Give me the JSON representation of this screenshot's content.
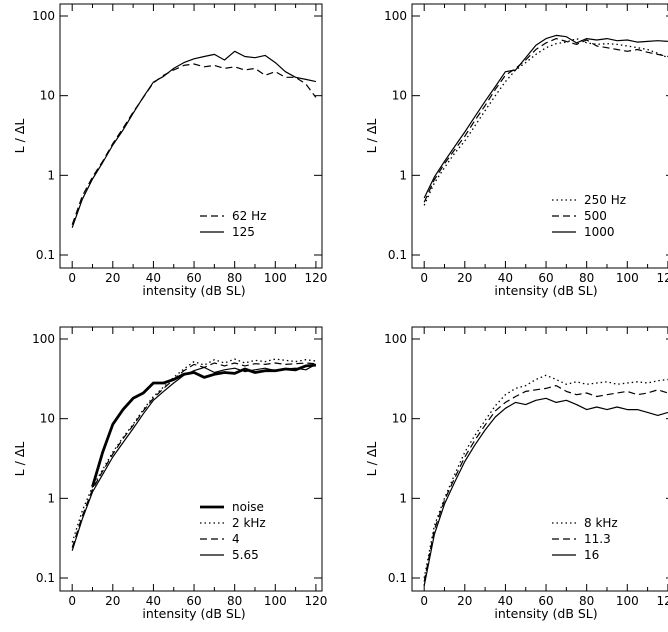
{
  "chart_data": [
    {
      "type": "line",
      "xlabel": "intensity (dB SL)",
      "ylabel": "L / ΔL",
      "xlim": [
        -6,
        123
      ],
      "ylim": [
        0.1,
        100
      ],
      "yscale": "log",
      "xticks": [
        0,
        20,
        40,
        60,
        80,
        100,
        120
      ],
      "yticks": [
        0.1,
        1,
        10,
        100
      ],
      "ytick_labels": [
        "0.1",
        "1",
        "10",
        "100"
      ],
      "legend_position": "bottom-right",
      "series": [
        {
          "name": "62 Hz",
          "style": "dashed",
          "x": [
            0,
            5,
            10,
            15,
            20,
            25,
            30,
            35,
            40,
            45,
            50,
            55,
            60,
            65,
            70,
            75,
            80,
            85,
            90,
            95,
            100,
            105,
            110,
            115,
            120
          ],
          "y": [
            0.24,
            0.55,
            0.95,
            1.5,
            2.5,
            3.9,
            6.2,
            9.5,
            14.5,
            18,
            21,
            24,
            25,
            23,
            24,
            22,
            23,
            21,
            22,
            18,
            20,
            17,
            17,
            14,
            9.5
          ]
        },
        {
          "name": "125",
          "style": "solid",
          "x": [
            0,
            5,
            10,
            15,
            20,
            25,
            30,
            35,
            40,
            45,
            50,
            55,
            60,
            65,
            70,
            75,
            80,
            85,
            90,
            95,
            100,
            105,
            110,
            115,
            120
          ],
          "y": [
            0.22,
            0.5,
            0.9,
            1.45,
            2.4,
            3.7,
            6.0,
            9.6,
            14.8,
            17.5,
            22,
            26,
            29,
            31,
            33,
            28,
            36,
            31,
            30,
            32,
            26,
            20,
            17,
            16,
            15
          ]
        }
      ]
    },
    {
      "type": "line",
      "xlabel": "intensity (dB SL)",
      "ylabel": "L / ΔL",
      "xlim": [
        -6,
        123
      ],
      "ylim": [
        0.1,
        100
      ],
      "yscale": "log",
      "xticks": [
        0,
        20,
        40,
        60,
        80,
        100,
        120
      ],
      "yticks": [
        0.1,
        1,
        10,
        100
      ],
      "ytick_labels": [
        "0.1",
        "1",
        "10",
        "100"
      ],
      "legend_position": "bottom-right",
      "series": [
        {
          "name": "250 Hz",
          "style": "dotted",
          "x": [
            0,
            5,
            10,
            15,
            20,
            25,
            30,
            35,
            40,
            45,
            50,
            55,
            60,
            65,
            70,
            75,
            80,
            85,
            90,
            95,
            100,
            105,
            110,
            115,
            120
          ],
          "y": [
            0.42,
            0.8,
            1.25,
            1.9,
            2.7,
            4.2,
            6.5,
            10,
            15,
            21,
            26,
            33,
            40,
            45,
            47,
            52,
            46,
            44,
            45,
            44,
            42,
            40,
            38,
            34,
            30
          ]
        },
        {
          "name": "500",
          "style": "dashed",
          "x": [
            0,
            5,
            10,
            15,
            20,
            25,
            30,
            35,
            40,
            45,
            50,
            55,
            60,
            65,
            70,
            75,
            80,
            85,
            90,
            95,
            100,
            105,
            110,
            115,
            120
          ],
          "y": [
            0.46,
            0.88,
            1.4,
            2.1,
            3.1,
            4.9,
            7.5,
            12,
            18,
            22,
            28,
            38,
            46,
            52,
            48,
            44,
            50,
            42,
            40,
            38,
            36,
            38,
            35,
            33,
            31
          ]
        },
        {
          "name": "1000",
          "style": "solid",
          "x": [
            0,
            5,
            10,
            15,
            20,
            25,
            30,
            35,
            40,
            45,
            50,
            55,
            60,
            65,
            70,
            75,
            80,
            85,
            90,
            95,
            100,
            105,
            110,
            115,
            120
          ],
          "y": [
            0.52,
            0.95,
            1.5,
            2.3,
            3.5,
            5.5,
            8.5,
            13,
            20,
            21,
            30,
            43,
            52,
            57,
            55,
            46,
            52,
            50,
            52,
            49,
            50,
            47,
            48,
            49,
            48
          ]
        }
      ]
    },
    {
      "type": "line",
      "xlabel": "intensity (dB SL)",
      "ylabel": "L / ΔL",
      "xlim": [
        -6,
        123
      ],
      "ylim": [
        0.1,
        100
      ],
      "yscale": "log",
      "xticks": [
        0,
        20,
        40,
        60,
        80,
        100,
        120
      ],
      "yticks": [
        0.1,
        1,
        10,
        100
      ],
      "ytick_labels": [
        "0.1",
        "1",
        "10",
        "100"
      ],
      "legend_position": "bottom-right",
      "series": [
        {
          "name": "noise",
          "style": "thick-solid",
          "x": [
            10,
            15,
            20,
            25,
            30,
            35,
            40,
            45,
            50,
            55,
            60,
            65,
            70,
            75,
            80,
            85,
            90,
            95,
            100,
            105,
            110,
            115,
            120
          ],
          "y": [
            1.4,
            3.8,
            8.5,
            13,
            18,
            21,
            28,
            28,
            31,
            36,
            38,
            33,
            36,
            38,
            37,
            42,
            38,
            40,
            40,
            42,
            41,
            46,
            47
          ]
        },
        {
          "name": "2 kHz",
          "style": "dotted",
          "x": [
            0,
            5,
            10,
            15,
            20,
            25,
            30,
            35,
            40,
            45,
            50,
            55,
            60,
            65,
            70,
            75,
            80,
            85,
            90,
            95,
            100,
            105,
            110,
            115,
            120
          ],
          "y": [
            0.28,
            0.7,
            1.4,
            2.3,
            3.8,
            5.8,
            8.5,
            13,
            19,
            25,
            33,
            42,
            52,
            47,
            55,
            50,
            56,
            50,
            54,
            52,
            56,
            54,
            52,
            55,
            53
          ]
        },
        {
          "name": "4",
          "style": "dashed",
          "x": [
            0,
            5,
            10,
            15,
            20,
            25,
            30,
            35,
            40,
            45,
            50,
            55,
            60,
            65,
            70,
            75,
            80,
            85,
            90,
            95,
            100,
            105,
            110,
            115,
            120
          ],
          "y": [
            0.24,
            0.6,
            1.3,
            2.2,
            3.6,
            5.6,
            8.2,
            12.5,
            18,
            24,
            31,
            40,
            48,
            44,
            50,
            46,
            50,
            46,
            49,
            48,
            50,
            48,
            49,
            50,
            49
          ]
        },
        {
          "name": "5.65",
          "style": "solid",
          "x": [
            0,
            5,
            10,
            15,
            20,
            25,
            30,
            35,
            40,
            45,
            50,
            55,
            60,
            65,
            70,
            75,
            80,
            85,
            90,
            95,
            100,
            105,
            110,
            115,
            120
          ],
          "y": [
            0.22,
            0.55,
            1.2,
            2.0,
            3.3,
            5.0,
            7.5,
            11.5,
            17,
            22,
            28,
            35,
            40,
            44,
            38,
            41,
            43,
            39,
            41,
            43,
            40,
            42,
            43,
            41,
            48
          ]
        }
      ]
    },
    {
      "type": "line",
      "xlabel": "intensity (dB SL)",
      "ylabel": "L / ΔL",
      "xlim": [
        -6,
        123
      ],
      "ylim": [
        0.1,
        100
      ],
      "yscale": "log",
      "xticks": [
        0,
        20,
        40,
        60,
        80,
        100,
        120
      ],
      "yticks": [
        0.1,
        1,
        10,
        100
      ],
      "ytick_labels": [
        "0.1",
        "1",
        "10",
        "100"
      ],
      "legend_position": "bottom-right",
      "series": [
        {
          "name": "8 kHz",
          "style": "dotted",
          "x": [
            0,
            5,
            10,
            15,
            20,
            25,
            30,
            35,
            40,
            45,
            50,
            55,
            60,
            65,
            70,
            75,
            80,
            85,
            90,
            95,
            100,
            105,
            110,
            115,
            120
          ],
          "y": [
            0.1,
            0.45,
            1.0,
            2.0,
            3.8,
            6.2,
            9.5,
            14.5,
            20,
            24,
            26,
            31,
            35,
            31,
            27,
            29,
            27,
            28,
            29,
            27,
            28,
            29,
            28,
            30,
            31
          ]
        },
        {
          "name": "11.3",
          "style": "dashed",
          "x": [
            0,
            5,
            10,
            15,
            20,
            25,
            30,
            35,
            40,
            45,
            50,
            55,
            60,
            65,
            70,
            75,
            80,
            85,
            90,
            95,
            100,
            105,
            110,
            115,
            120
          ],
          "y": [
            0.09,
            0.4,
            0.95,
            1.8,
            3.3,
            5.4,
            8.3,
            12.5,
            16,
            19,
            22,
            23,
            24,
            26,
            22,
            20,
            21,
            19,
            20,
            21,
            22,
            20,
            21,
            23,
            21
          ]
        },
        {
          "name": "16",
          "style": "solid",
          "x": [
            0,
            5,
            10,
            15,
            20,
            25,
            30,
            35,
            40,
            45,
            50,
            55,
            60,
            65,
            70,
            75,
            80,
            85,
            90,
            95,
            100,
            105,
            110,
            115,
            120
          ],
          "y": [
            0.08,
            0.35,
            0.85,
            1.6,
            2.9,
            4.7,
            7.2,
            10.5,
            13.5,
            16,
            15,
            17,
            18,
            16,
            17,
            15,
            13,
            14,
            13,
            14,
            13,
            13,
            12,
            11,
            12
          ]
        }
      ]
    }
  ]
}
